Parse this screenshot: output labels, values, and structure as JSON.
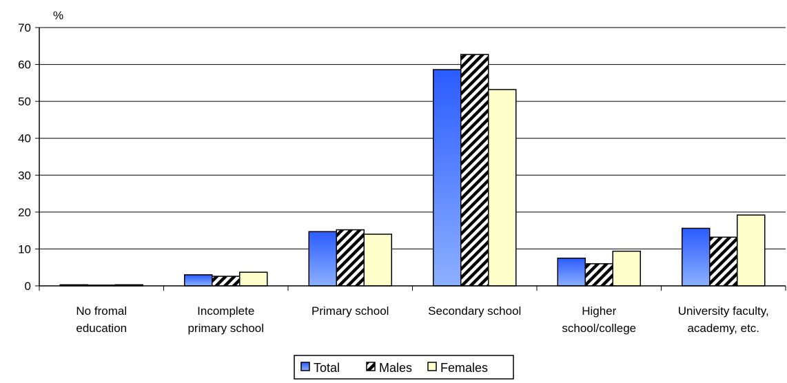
{
  "chart_data": {
    "type": "bar",
    "title": "",
    "xlabel": "",
    "ylabel": "%",
    "ylim": [
      0,
      70
    ],
    "yticks": [
      0,
      10,
      20,
      30,
      40,
      50,
      60,
      70
    ],
    "grid": true,
    "legend_position": "bottom",
    "categories": [
      [
        "No fromal",
        "education"
      ],
      [
        "Incomplete",
        "primary school"
      ],
      [
        "Primary school"
      ],
      [
        "Secondary school"
      ],
      [
        "Higher",
        "school/college"
      ],
      [
        "University faculty,",
        "academy, etc."
      ]
    ],
    "series": [
      {
        "name": "Total",
        "style": "blue-gradient",
        "values": [
          0.3,
          3.0,
          14.7,
          58.6,
          7.5,
          15.6
        ]
      },
      {
        "name": "Males",
        "style": "diagonal-hatch",
        "values": [
          0.2,
          2.6,
          15.2,
          62.7,
          6.0,
          13.2
        ]
      },
      {
        "name": "Females",
        "style": "light-yellow",
        "values": [
          0.3,
          3.7,
          14.0,
          53.2,
          9.4,
          19.2
        ]
      }
    ],
    "colors": {
      "total_top": "#2b5cff",
      "total_bottom": "#8cb0ff",
      "females_fill": "#ffffcc",
      "hatch_fg": "#000000",
      "hatch_bg": "#ffffff",
      "gridline": "#000000"
    }
  }
}
